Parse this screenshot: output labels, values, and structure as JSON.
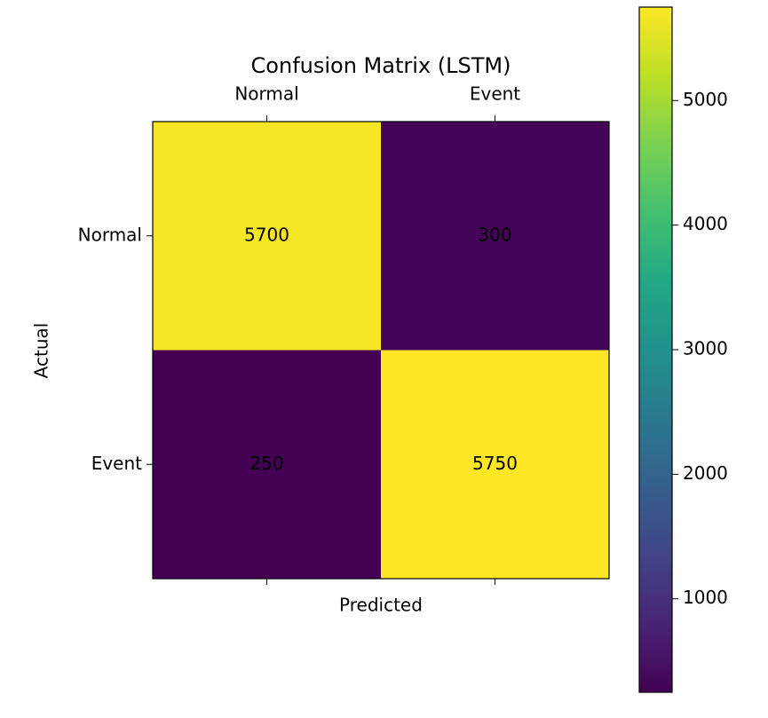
{
  "chart_data": {
    "type": "heatmap",
    "title": "Confusion Matrix (LSTM)",
    "xlabel": "Predicted",
    "ylabel": "Actual",
    "x_categories": [
      "Normal",
      "Event"
    ],
    "y_categories": [
      "Normal",
      "Event"
    ],
    "values": [
      [
        5700,
        300
      ],
      [
        250,
        5750
      ]
    ],
    "colormap": "viridis",
    "clim": [
      250,
      5750
    ],
    "cticks": [
      1000,
      2000,
      3000,
      4000,
      5000
    ]
  }
}
